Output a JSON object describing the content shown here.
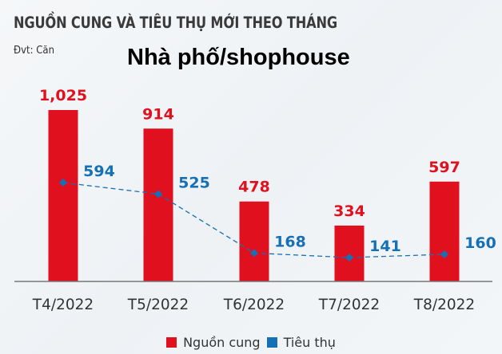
{
  "header": {
    "title": "NGUỒN CUNG VÀ TIÊU THỤ MỚI THEO THÁNG",
    "unit": "Đvt: Căn",
    "subtitle": "Nhà phố/shophouse"
  },
  "colors": {
    "supply": "#e0101e",
    "consumption": "#1570b5",
    "axis": "#777777"
  },
  "legend": {
    "items": [
      {
        "label": "Nguồn cung",
        "color": "#e0101e"
      },
      {
        "label": "Tiêu thụ",
        "color": "#1570b5"
      }
    ]
  },
  "chart_data": {
    "type": "bar",
    "title": "NGUỒN CUNG VÀ TIÊU THỤ MỚI THEO THÁNG",
    "subtitle": "Nhà phố/shophouse",
    "unit": "Đvt: Căn",
    "categories": [
      "T4/2022",
      "T5/2022",
      "T6/2022",
      "T7/2022",
      "T8/2022"
    ],
    "series": [
      {
        "name": "Nguồn cung",
        "type": "bar",
        "color": "#e0101e",
        "values": [
          1025,
          914,
          478,
          334,
          597
        ],
        "labels": [
          "1,025",
          "914",
          "478",
          "334",
          "597"
        ]
      },
      {
        "name": "Tiêu thụ",
        "type": "line",
        "style": "dashed",
        "marker": "diamond",
        "color": "#1570b5",
        "values": [
          594,
          525,
          168,
          141,
          160
        ],
        "labels": [
          "594",
          "525",
          "168",
          "141",
          "160"
        ]
      }
    ],
    "xlabel": "",
    "ylabel": "",
    "grid": false,
    "legend_position": "bottom"
  }
}
